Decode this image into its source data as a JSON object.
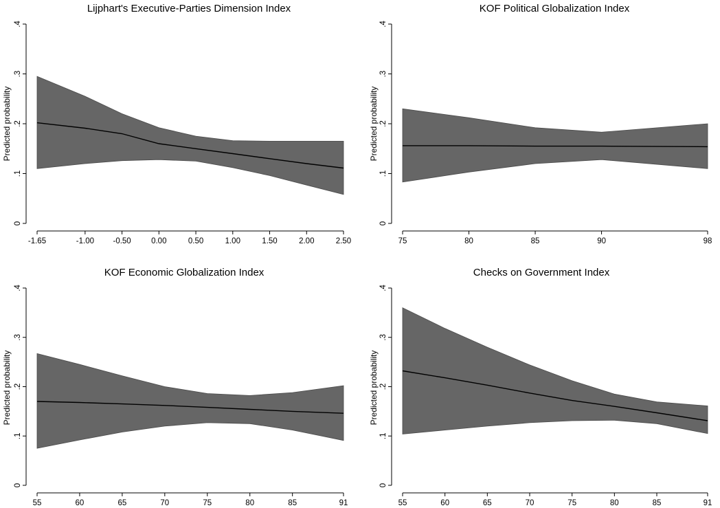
{
  "figure": {
    "chart_data": [
      {
        "type": "area",
        "title": "Lijphart's Executive-Parties Dimension Index",
        "ylabel": "Predicted probability",
        "xlabel": "",
        "ylim": [
          0,
          0.4
        ],
        "yticks": [
          0,
          0.1,
          0.2,
          0.3,
          0.4
        ],
        "ytick_labels": [
          "0",
          ".1",
          ".2",
          ".3",
          ".4"
        ],
        "xlim": [
          -1.65,
          2.5
        ],
        "xticks": [
          -1.65,
          -1.0,
          -0.5,
          0.0,
          0.5,
          1.0,
          1.5,
          2.0,
          2.5
        ],
        "xtick_labels": [
          "-1.65",
          "-1.00",
          "-0.50",
          "0.00",
          "0.50",
          "1.00",
          "1.50",
          "2.00",
          "2.50"
        ],
        "x": [
          -1.65,
          -1.0,
          -0.5,
          0.0,
          0.5,
          1.0,
          1.5,
          2.0,
          2.5
        ],
        "series": [
          {
            "role": "estimate",
            "values": [
              0.202,
              0.191,
              0.18,
              0.16,
              0.15,
              0.14,
              0.13,
              0.12,
              0.111
            ]
          },
          {
            "role": "upper",
            "values": [
              0.295,
              0.255,
              0.22,
              0.192,
              0.175,
              0.166,
              0.165,
              0.165,
              0.165
            ]
          },
          {
            "role": "lower",
            "values": [
              0.11,
              0.12,
              0.126,
              0.128,
              0.125,
              0.112,
              0.096,
              0.077,
              0.058
            ]
          }
        ]
      },
      {
        "type": "area",
        "title": "KOF Political Globalization Index",
        "ylabel": "Predicted probability",
        "xlabel": "",
        "ylim": [
          0,
          0.4
        ],
        "yticks": [
          0,
          0.1,
          0.2,
          0.3,
          0.4
        ],
        "ytick_labels": [
          "0",
          ".1",
          ".2",
          ".3",
          ".4"
        ],
        "xlim": [
          75,
          98
        ],
        "xticks": [
          75,
          80,
          85,
          90,
          98
        ],
        "xtick_labels": [
          "75",
          "80",
          "85",
          "90",
          "98"
        ],
        "x": [
          75,
          80,
          85,
          90,
          98
        ],
        "series": [
          {
            "role": "estimate",
            "values": [
              0.156,
              0.156,
              0.155,
              0.155,
              0.154
            ]
          },
          {
            "role": "upper",
            "values": [
              0.23,
              0.212,
              0.192,
              0.183,
              0.2
            ]
          },
          {
            "role": "lower",
            "values": [
              0.083,
              0.103,
              0.12,
              0.128,
              0.11
            ]
          }
        ]
      },
      {
        "type": "area",
        "title": "KOF Economic Globalization Index",
        "ylabel": "Predicted probability",
        "xlabel": "",
        "ylim": [
          0,
          0.4
        ],
        "yticks": [
          0,
          0.1,
          0.2,
          0.3,
          0.4
        ],
        "ytick_labels": [
          "0",
          ".1",
          ".2",
          ".3",
          ".4"
        ],
        "xlim": [
          55,
          91
        ],
        "xticks": [
          55,
          60,
          65,
          70,
          75,
          80,
          85,
          91
        ],
        "xtick_labels": [
          "55",
          "60",
          "65",
          "70",
          "75",
          "80",
          "85",
          "91"
        ],
        "x": [
          55,
          60,
          65,
          70,
          75,
          80,
          85,
          91
        ],
        "series": [
          {
            "role": "estimate",
            "values": [
              0.17,
              0.168,
              0.165,
              0.162,
              0.158,
              0.154,
              0.15,
              0.146
            ]
          },
          {
            "role": "upper",
            "values": [
              0.267,
              0.245,
              0.222,
              0.2,
              0.186,
              0.182,
              0.188,
              0.202
            ]
          },
          {
            "role": "lower",
            "values": [
              0.075,
              0.092,
              0.108,
              0.12,
              0.127,
              0.125,
              0.112,
              0.091
            ]
          }
        ]
      },
      {
        "type": "area",
        "title": "Checks on Government Index",
        "ylabel": "Predicted probability",
        "xlabel": "",
        "ylim": [
          0,
          0.4
        ],
        "yticks": [
          0,
          0.1,
          0.2,
          0.3,
          0.4
        ],
        "ytick_labels": [
          "0",
          ".1",
          ".2",
          ".3",
          ".4"
        ],
        "xlim": [
          55,
          91
        ],
        "xticks": [
          55,
          60,
          65,
          70,
          75,
          80,
          85,
          91
        ],
        "xtick_labels": [
          "55",
          "60",
          "65",
          "70",
          "75",
          "80",
          "85",
          "91"
        ],
        "x": [
          55,
          60,
          65,
          70,
          75,
          80,
          85,
          91
        ],
        "series": [
          {
            "role": "estimate",
            "values": [
              0.232,
              0.218,
              0.203,
              0.187,
              0.172,
              0.16,
              0.147,
              0.131
            ]
          },
          {
            "role": "upper",
            "values": [
              0.36,
              0.318,
              0.28,
              0.244,
              0.212,
              0.185,
              0.169,
              0.161
            ]
          },
          {
            "role": "lower",
            "values": [
              0.104,
              0.112,
              0.12,
              0.127,
              0.131,
              0.132,
              0.125,
              0.105
            ]
          }
        ]
      }
    ]
  },
  "colors": {
    "band": "#666666",
    "line": "#000000",
    "axis": "#000000",
    "background": "#ffffff"
  }
}
